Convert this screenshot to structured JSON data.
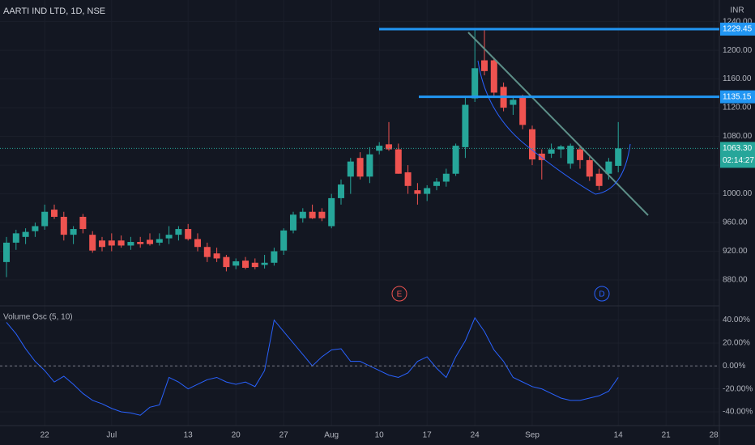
{
  "chart_data": [
    {
      "type": "candlestick",
      "title": "AARTI IND LTD, 1D, NSE",
      "currency": "INR",
      "categories": [
        null,
        null,
        null,
        null,
        "22",
        null,
        null,
        null,
        null,
        null,
        null,
        "Jul",
        null,
        null,
        null,
        null,
        null,
        null,
        null,
        "13",
        null,
        null,
        null,
        null,
        "20",
        null,
        null,
        null,
        null,
        "27",
        null,
        null,
        null,
        null,
        "Aug",
        null,
        null,
        null,
        null,
        "10",
        null,
        null,
        null,
        null,
        "17",
        null,
        null,
        null,
        null,
        "24",
        null,
        null,
        null,
        null,
        null,
        "Sep",
        null,
        null,
        null,
        null,
        null,
        null,
        null,
        null,
        "14",
        null,
        null,
        null,
        null,
        "21",
        null,
        null,
        null,
        null,
        "28"
      ],
      "open": [
        905,
        932,
        940,
        948,
        955,
        978,
        968,
        943,
        968,
        943,
        935,
        935,
        935,
        928,
        933,
        936,
        932,
        938,
        943,
        951,
        937,
        926,
        917,
        912,
        900,
        907,
        904,
        901,
        904,
        921,
        949,
        966,
        975,
        975,
        955,
        994,
        1024,
        1050,
        1024,
        1060,
        1069,
        1062,
        1030,
        1005,
        1000,
        1011,
        1017,
        1028,
        1065,
        1133,
        1186,
        1186,
        1149,
        1124,
        1134,
        1090,
        1056,
        1056,
        1062,
        1042,
        1062,
        1047,
        1028,
        1028,
        1039,
        null,
        null,
        null,
        null,
        null,
        null,
        null,
        null,
        null,
        null
      ],
      "high": [
        940,
        950,
        952,
        960,
        985,
        985,
        975,
        955,
        972,
        948,
        940,
        945,
        942,
        940,
        940,
        945,
        945,
        955,
        955,
        958,
        945,
        932,
        925,
        915,
        910,
        912,
        910,
        915,
        925,
        952,
        975,
        980,
        985,
        980,
        1000,
        1020,
        1050,
        1058,
        1065,
        1072,
        1100,
        1070,
        1040,
        1015,
        1012,
        1022,
        1035,
        1070,
        1135,
        1230,
        1229,
        1190,
        1155,
        1135,
        1138,
        1095,
        1062,
        1070,
        1068,
        1070,
        1068,
        1052,
        1035,
        1050,
        1100,
        null,
        null,
        null,
        null,
        null,
        null,
        null,
        null,
        null,
        null
      ],
      "low": [
        884,
        922,
        930,
        940,
        950,
        965,
        935,
        930,
        945,
        918,
        920,
        920,
        925,
        922,
        925,
        928,
        928,
        930,
        935,
        935,
        920,
        905,
        905,
        892,
        895,
        895,
        895,
        896,
        900,
        915,
        945,
        960,
        965,
        962,
        952,
        985,
        1000,
        1020,
        1015,
        1055,
        1060,
        1028,
        1000,
        985,
        990,
        1005,
        1010,
        1025,
        1050,
        1128,
        1165,
        1135,
        1115,
        1110,
        1090,
        1040,
        1020,
        1050,
        1050,
        1035,
        1035,
        1018,
        1005,
        1020,
        1030,
        null,
        null,
        null,
        null,
        null,
        null,
        null,
        null,
        null,
        null
      ],
      "close": [
        932,
        945,
        947,
        955,
        975,
        968,
        943,
        951,
        951,
        921,
        926,
        928,
        928,
        933,
        930,
        930,
        937,
        943,
        951,
        937,
        926,
        912,
        910,
        898,
        906,
        897,
        898,
        904,
        920,
        949,
        971,
        975,
        966,
        966,
        994,
        1013,
        1045,
        1024,
        1055,
        1067,
        1062,
        1028,
        1011,
        1000,
        1008,
        1017,
        1028,
        1067,
        1124,
        1175,
        1171,
        1141,
        1120,
        1131,
        1096,
        1048,
        1047,
        1062,
        1066,
        1067,
        1047,
        1024,
        1011,
        1045,
        1063.3,
        null,
        null,
        null,
        null,
        null,
        null,
        null,
        null,
        null,
        null
      ],
      "up_color": "#26a69a",
      "down_color": "#ef5350",
      "ylim": [
        844,
        1270
      ],
      "yticks": [
        {
          "value": 880,
          "label": "880.00"
        },
        {
          "value": 920,
          "label": "920.00"
        },
        {
          "value": 960,
          "label": "960.00"
        },
        {
          "value": 1000,
          "label": "1000.00"
        },
        {
          "value": 1040,
          "label": "1040.00"
        },
        {
          "value": 1080,
          "label": "1080.00"
        },
        {
          "value": 1120,
          "label": "1120.00"
        },
        {
          "value": 1160,
          "label": "1160.00"
        },
        {
          "value": 1200,
          "label": "1200.00"
        },
        {
          "value": 1240,
          "label": "1240.00"
        }
      ],
      "levels": [
        1229.45,
        1135.15
      ],
      "level_color": "#2196f3",
      "last_price": {
        "value": 1063.3,
        "label": "1063.30"
      },
      "countdown": "02:14:27",
      "events": [
        "E",
        "D"
      ]
    },
    {
      "type": "line",
      "title": "Volume Osc (5, 10)",
      "color": "#2962ff",
      "values": [
        38,
        28,
        15,
        4,
        -4,
        -14,
        -9,
        -16,
        -24,
        -30,
        -33,
        -37,
        -40,
        -41,
        -43,
        -36,
        -34,
        -10,
        -14,
        -20,
        -16,
        -12,
        -10,
        -14,
        -16,
        -14,
        -18,
        -4,
        40,
        30,
        20,
        10,
        0,
        8,
        14,
        15,
        4,
        4,
        0,
        -4,
        -8,
        -10,
        -6,
        4,
        8,
        -2,
        -10,
        8,
        22,
        42,
        30,
        14,
        4,
        -10,
        -14,
        -18,
        -20,
        -24,
        -28,
        -30,
        -30,
        -28,
        -26,
        -22,
        -10,
        null,
        null,
        null,
        null,
        null,
        null,
        null,
        null,
        null,
        null
      ],
      "ylim": [
        -52,
        51
      ],
      "yticks": [
        {
          "value": 40,
          "label": "40.00%"
        },
        {
          "value": 20,
          "label": "20.00%"
        },
        {
          "value": 0,
          "label": "0.00%"
        },
        {
          "value": -20,
          "label": "-20.00%"
        },
        {
          "value": -40,
          "label": "-40.00%"
        }
      ],
      "zero_line": true
    }
  ]
}
